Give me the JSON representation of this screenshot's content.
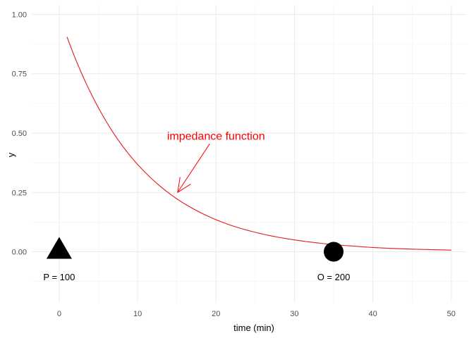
{
  "chart_data": {
    "type": "line",
    "xlabel": "time (min)",
    "ylabel": "y",
    "xlim": [
      -3.5,
      52
    ],
    "ylim": [
      -0.215,
      1.04
    ],
    "x_ticks": [
      0,
      10,
      20,
      30,
      40,
      50
    ],
    "x_tick_labels": [
      "0",
      "10",
      "20",
      "30",
      "40",
      "50"
    ],
    "y_ticks": [
      0,
      0.25,
      0.5,
      0.75,
      1.0
    ],
    "y_tick_labels": [
      "0.00",
      "0.25",
      "0.50",
      "0.75",
      "1.00"
    ],
    "grid": true,
    "series": [
      {
        "color": "#e41a1c",
        "x": [
          1,
          2.5,
          5,
          7.5,
          10,
          12.5,
          15,
          17.5,
          20,
          22.5,
          25,
          27.5,
          30,
          32.5,
          35,
          37.5,
          40,
          42.5,
          45,
          47.5,
          50
        ],
        "y": [
          0.905,
          0.779,
          0.607,
          0.472,
          0.368,
          0.287,
          0.223,
          0.174,
          0.135,
          0.105,
          0.082,
          0.064,
          0.05,
          0.039,
          0.03,
          0.024,
          0.018,
          0.014,
          0.011,
          0.009,
          0.007
        ]
      }
    ],
    "points": [
      {
        "name": "P",
        "shape": "triangle",
        "x": 0,
        "y": 0,
        "label": "P = 100",
        "label_y": -0.105,
        "color": "#000000"
      },
      {
        "name": "O",
        "shape": "circle",
        "x": 35,
        "y": 0,
        "label": "O = 200",
        "label_y": -0.105,
        "color": "#000000"
      }
    ],
    "annotations": [
      {
        "text": "impedance function",
        "x": 20,
        "y": 0.49,
        "color": "#ff0000",
        "arrow_from": [
          19.2,
          0.455
        ],
        "arrow_to": [
          15.1,
          0.25
        ]
      }
    ]
  }
}
